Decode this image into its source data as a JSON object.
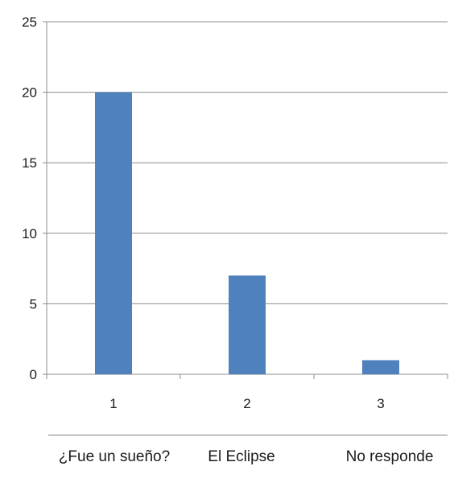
{
  "chart_data": {
    "type": "bar",
    "x": [
      "1",
      "2",
      "3"
    ],
    "values": [
      20,
      7,
      1
    ],
    "ylim": [
      0,
      25
    ],
    "yticks": [
      "0",
      "5",
      "10",
      "15",
      "20",
      "25"
    ],
    "grid": true,
    "bar_color": "#4f81bd"
  },
  "category_table": {
    "labels": [
      "¿Fue un sueño?",
      "El Eclipse",
      "No responde"
    ]
  }
}
